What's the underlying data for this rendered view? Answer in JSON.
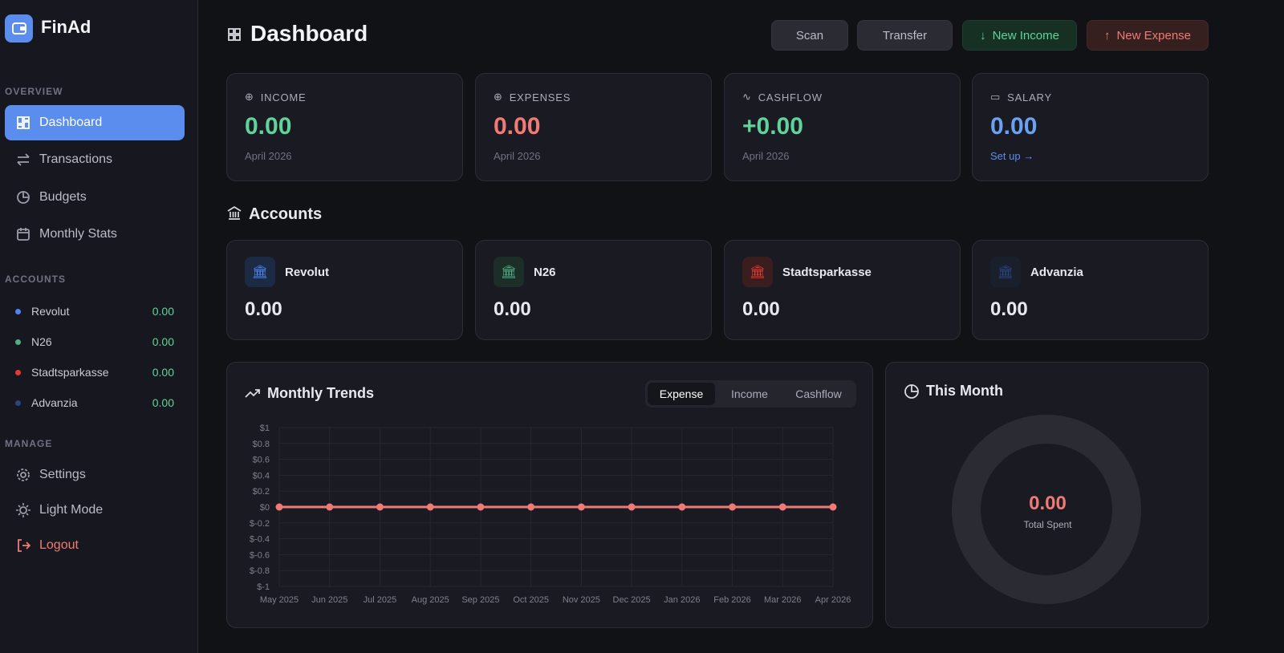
{
  "brand": "FinAd",
  "sidebar": {
    "overview_label": "OVERVIEW",
    "nav": [
      "Dashboard",
      "Transactions",
      "Budgets",
      "Monthly Stats"
    ],
    "accounts_label": "ACCOUNTS",
    "accounts": [
      {
        "name": "Revolut",
        "value": "0.00"
      },
      {
        "name": "N26",
        "value": "0.00"
      },
      {
        "name": "Stadtsparkasse",
        "value": "0.00"
      },
      {
        "name": "Advanzia",
        "value": "0.00"
      }
    ],
    "manage_label": "MANAGE",
    "manage": [
      "Settings",
      "Light Mode",
      "Logout"
    ]
  },
  "header": {
    "title": "Dashboard",
    "buttons": [
      "Scan",
      "Transfer",
      "New Income",
      "New Expense"
    ]
  },
  "stats": [
    {
      "label": "INCOME",
      "value": "0.00",
      "sub": "April 2026"
    },
    {
      "label": "EXPENSES",
      "value": "0.00",
      "sub": "April 2026"
    },
    {
      "label": "CASHFLOW",
      "value": "+0.00",
      "sub": "April 2026"
    },
    {
      "label": "SALARY",
      "value": "0.00",
      "sub": "Set up →"
    }
  ],
  "accounts": {
    "title": "Accounts",
    "cards": [
      {
        "name": "Revolut",
        "value": "0.00"
      },
      {
        "name": "N26",
        "value": "0.00"
      },
      {
        "name": "Stadtsparkasse",
        "value": "0.00"
      },
      {
        "name": "Advanzia",
        "value": "0.00"
      }
    ]
  },
  "trends": {
    "title": "Monthly Trends",
    "tabs": [
      "Expense",
      "Income",
      "Cashflow"
    ]
  },
  "chart_data": {
    "type": "line",
    "categories": [
      "May 2025",
      "Jun 2025",
      "Jul 2025",
      "Aug 2025",
      "Sep 2025",
      "Oct 2025",
      "Nov 2025",
      "Dec 2025",
      "Jan 2026",
      "Feb 2026",
      "Mar 2026",
      "Apr 2026"
    ],
    "values": [
      0,
      0,
      0,
      0,
      0,
      0,
      0,
      0,
      0,
      0,
      0,
      0
    ],
    "color": "#f07a74",
    "ylim": [
      -1,
      1
    ],
    "yticks": [
      {
        "value": -1,
        "label": "$-1"
      },
      {
        "value": -0.8,
        "label": "$-0.8"
      },
      {
        "value": -0.6,
        "label": "$-0.6"
      },
      {
        "value": -0.4,
        "label": "$-0.4"
      },
      {
        "value": -0.2,
        "label": "$-0.2"
      },
      {
        "value": 0,
        "label": "$0"
      },
      {
        "value": 0.2,
        "label": "$0.2"
      },
      {
        "value": 0.4,
        "label": "$0.4"
      },
      {
        "value": 0.6,
        "label": "$0.6"
      },
      {
        "value": 0.8,
        "label": "$0.8"
      },
      {
        "value": 1,
        "label": "$1"
      }
    ],
    "grid": true
  },
  "this_month": {
    "title": "This Month",
    "value": "0.00",
    "label": "Total Spent"
  }
}
